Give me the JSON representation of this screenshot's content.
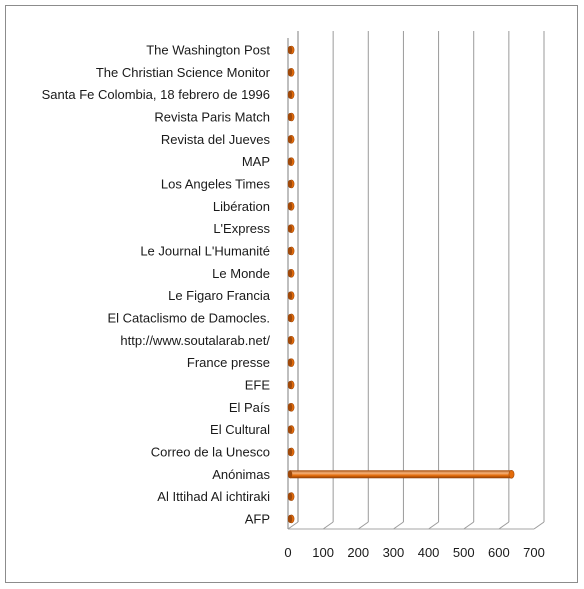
{
  "chart_data": {
    "type": "bar",
    "orientation": "horizontal",
    "style": "3d-cylinder",
    "categories": [
      "The Washington Post",
      "The Christian Science Monitor",
      "Santa Fe Colombia, 18 febrero de 1996",
      "Revista Paris Match",
      "Revista del Jueves",
      "MAP",
      "Los Angeles Times",
      "Libération ",
      "L'Express",
      "Le Journal L'Humanité",
      "Le Monde",
      "Le Figaro Francia",
      "El Cataclismo de Damocles.",
      "http://www.soutalarab.net/",
      "France presse",
      "EFE",
      "El País",
      "El Cultural ",
      "Correo de la Unesco",
      "Anónimas",
      "Al Ittihad Al ichtiraki",
      "AFP"
    ],
    "values": [
      1,
      1,
      1,
      2,
      1,
      1,
      1,
      1,
      1,
      1,
      1,
      1,
      1,
      1,
      1,
      1,
      1,
      1,
      1,
      636,
      2,
      2
    ],
    "x_ticks": [
      "0",
      "100",
      "200",
      "300",
      "400",
      "500",
      "600",
      "700"
    ],
    "xlim": [
      0,
      700
    ],
    "grid": true,
    "legend": "none",
    "colors": {
      "bar": "#e46c0a",
      "bar_dark": "#a0490a",
      "bar_light": "#f6b27a",
      "grid": "#9a9a9a",
      "floor": "#a6a6a6"
    }
  }
}
